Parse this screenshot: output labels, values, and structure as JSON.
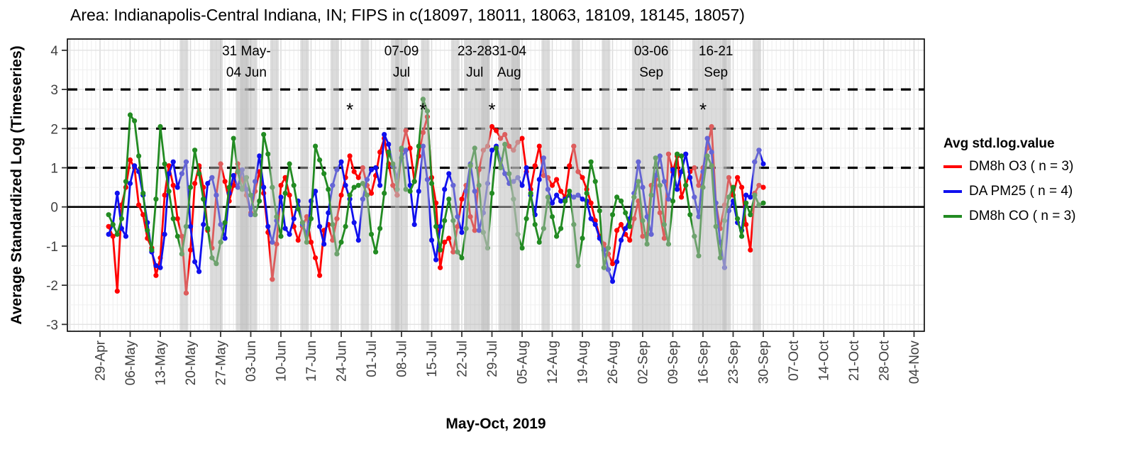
{
  "title": "Area: Indianapolis-Central Indiana, IN; FIPS in c(18097, 18011, 18063, 18109, 18145, 18057)",
  "legend": {
    "title": "Avg std.log.value",
    "entries": [
      {
        "label": "DM8h O3 ( n = 3)",
        "color": "#ff0000"
      },
      {
        "label": "DA PM25 ( n = 4)",
        "color": "#1010ee"
      },
      {
        "label": "DM8h CO ( n = 3)",
        "color": "#228b22"
      }
    ]
  },
  "chart_data": {
    "type": "line",
    "title": "Area: Indianapolis-Central Indiana, IN; FIPS in c(18097, 18011, 18063, 18109, 18145, 18057)",
    "x_axis": {
      "label": "May-Oct, 2019",
      "tick_start_date": "2019-04-29",
      "tick_interval_days": 7,
      "tick_labels": [
        "29-Apr",
        "06-May",
        "13-May",
        "20-May",
        "27-May",
        "03-Jun",
        "10-Jun",
        "17-Jun",
        "24-Jun",
        "01-Jul",
        "08-Jul",
        "15-Jul",
        "22-Jul",
        "29-Jul",
        "05-Aug",
        "12-Aug",
        "19-Aug",
        "26-Aug",
        "02-Sep",
        "09-Sep",
        "16-Sep",
        "23-Sep",
        "30-Sep",
        "07-Oct",
        "14-Oct",
        "21-Oct",
        "28-Oct",
        "04-Nov"
      ]
    },
    "y_axis": {
      "label": "Average Standardized Log (Timeseries)",
      "ticks": [
        -3,
        -2,
        -1,
        0,
        1,
        2,
        3,
        4
      ],
      "range": [
        -3.3,
        4.3
      ],
      "minor_step": 0.5
    },
    "reference_lines": {
      "solid": [
        0
      ],
      "dashed": [
        1,
        2,
        3
      ]
    },
    "data_start_date": "2019-05-01",
    "series": [
      {
        "name": "DM8h O3 ( n = 3)",
        "color": "#ff0000",
        "values": [
          -0.5,
          -0.75,
          -2.15,
          0.05,
          0.5,
          1.2,
          1.0,
          0.05,
          -0.2,
          -0.8,
          -1.05,
          -1.75,
          -1.3,
          0.3,
          1.05,
          0.55,
          -0.3,
          -0.75,
          -2.2,
          -1.1,
          0.6,
          1.05,
          0.5,
          -0.6,
          -1.05,
          0.3,
          1.1,
          0.65,
          0.15,
          0.55,
          1.1,
          0.7,
          0.3,
          -0.15,
          0.4,
          0.9,
          0.35,
          -0.65,
          -1.85,
          -0.95,
          0.55,
          0.75,
          0.3,
          -0.5,
          -0.85,
          -0.5,
          -0.25,
          -0.9,
          -1.3,
          -1.75,
          -0.6,
          -0.45,
          -0.85,
          -0.3,
          0.3,
          0.75,
          1.3,
          0.9,
          0.75,
          1.0,
          0.55,
          0.35,
          0.8,
          1.4,
          1.75,
          1.1,
          0.55,
          0.3,
          1.45,
          1.95,
          1.5,
          0.65,
          1.3,
          1.9,
          2.3,
          0.75,
          0.1,
          -1.55,
          -0.9,
          -0.8,
          -1.15,
          -0.5,
          0.2,
          0.55,
          -0.25,
          -0.6,
          0.95,
          1.45,
          1.55,
          2.05,
          1.95,
          1.75,
          1.85,
          1.55,
          1.45,
          1.65,
          1.75,
          0.9,
          0.45,
          1.05,
          1.55,
          0.8,
          0.75,
          0.55,
          0.7,
          0.4,
          0.25,
          1.05,
          1.55,
          0.9,
          0.75,
          0.45,
          0.1,
          -0.35,
          -0.75,
          -0.95,
          -1.2,
          -1.45,
          -0.6,
          -0.45,
          -0.7,
          -0.85,
          -0.3,
          0.15,
          -0.75,
          -0.7,
          0.55,
          0.7,
          -0.15,
          -0.8,
          1.35,
          0.9,
          1.3,
          0.25,
          0.55,
          0.9,
          1.0,
          0.55,
          1.0,
          1.5,
          2.05,
          0.1,
          -0.55,
          0.05,
          0.75,
          0.3,
          0.75,
          0.5,
          -0.45,
          -1.1,
          0.35,
          0.55,
          0.5
        ]
      },
      {
        "name": "DA PM25 ( n = 4)",
        "color": "#1010ee",
        "values": [
          -0.7,
          -0.45,
          0.35,
          -0.55,
          -0.75,
          0.6,
          1.05,
          0.9,
          0.3,
          -0.4,
          -1.15,
          -1.5,
          -1.55,
          -0.7,
          0.85,
          1.15,
          0.5,
          0.85,
          1.15,
          -0.5,
          -1.4,
          -1.65,
          -0.45,
          0.6,
          0.75,
          0.3,
          -0.45,
          -0.8,
          0.35,
          0.8,
          0.5,
          0.95,
          0.45,
          -0.2,
          0.65,
          1.3,
          0.5,
          -0.5,
          -0.9,
          -0.35,
          0.25,
          -0.55,
          -0.7,
          -0.3,
          0.15,
          -0.45,
          -0.7,
          0.15,
          0.4,
          -0.5,
          -0.95,
          -0.15,
          0.55,
          0.95,
          1.15,
          0.55,
          0.2,
          -0.4,
          -0.85,
          0.2,
          0.7,
          0.95,
          1.0,
          0.55,
          1.85,
          1.6,
          1.05,
          0.75,
          1.25,
          1.45,
          0.55,
          -0.45,
          0.4,
          1.55,
          0.7,
          -0.85,
          -1.35,
          -0.5,
          0.45,
          0.85,
          0.55,
          -0.25,
          -0.65,
          0.4,
          1.1,
          0.4,
          -0.6,
          -0.15,
          0.6,
          1.45,
          1.55,
          1.2,
          0.85,
          0.6,
          0.65,
          0.75,
          0.55,
          1.0,
          0.3,
          -0.2,
          0.7,
          1.25,
          0.45,
          0.1,
          0.3,
          0.15,
          0.2,
          0.3,
          0.25,
          0.3,
          0.2,
          0.15,
          -0.3,
          -0.45,
          -0.8,
          -1.1,
          -1.6,
          -1.9,
          -1.4,
          -0.85,
          -0.55,
          -0.3,
          0.35,
          1.15,
          0.5,
          -0.25,
          -0.7,
          0.8,
          1.3,
          0.65,
          0.2,
          0.95,
          0.45,
          0.9,
          1.35,
          0.75,
          0.25,
          -0.25,
          0.9,
          1.75,
          1.4,
          0.1,
          -0.9,
          -1.55,
          -0.1,
          0.15,
          -0.4,
          -0.6,
          0.3,
          0.25,
          1.15,
          1.45,
          1.1
        ]
      },
      {
        "name": "DM8h CO ( n = 3)",
        "color": "#228b22",
        "values": [
          -0.2,
          -0.45,
          -0.7,
          -0.3,
          0.65,
          2.35,
          2.2,
          1.3,
          0.35,
          -0.6,
          -1.1,
          0.2,
          2.05,
          1.1,
          0.4,
          -0.3,
          -0.75,
          -1.2,
          -0.5,
          0.5,
          1.45,
          0.85,
          0.2,
          -0.55,
          -1.3,
          -1.45,
          -0.9,
          -0.4,
          0.5,
          1.75,
          0.9,
          0.45,
          0.75,
          0.3,
          -0.2,
          0.15,
          1.85,
          1.35,
          0.5,
          -0.25,
          -0.75,
          0.35,
          1.1,
          0.55,
          -0.05,
          -0.4,
          -0.9,
          -0.3,
          1.55,
          1.2,
          0.85,
          0.45,
          -0.45,
          -1.2,
          -0.9,
          -0.5,
          0.3,
          0.5,
          0.55,
          0.6,
          0.3,
          -0.7,
          -1.15,
          -0.55,
          0.35,
          1.4,
          1.1,
          0.45,
          1.5,
          0.45,
          0.4,
          0.65,
          1.55,
          2.75,
          2.45,
          0.6,
          -0.5,
          -1.1,
          -0.35,
          0.2,
          -0.35,
          -1.15,
          -1.3,
          -0.55,
          1.05,
          1.5,
          0.55,
          -0.65,
          -1.05,
          0.35,
          1.5,
          1.0,
          1.6,
          0.85,
          0.2,
          -0.7,
          -1.05,
          -0.3,
          0.35,
          -0.45,
          -0.9,
          -0.55,
          0.25,
          -0.25,
          -0.75,
          -0.55,
          0.15,
          0.4,
          -0.45,
          -1.5,
          -0.8,
          0.35,
          1.15,
          0.65,
          -0.1,
          -1.55,
          -1.05,
          -0.2,
          0.25,
          0.15,
          -0.15,
          -0.5,
          0.25,
          0.65,
          -0.35,
          -0.95,
          0.3,
          1.25,
          0.55,
          -0.45,
          -0.95,
          0.15,
          1.35,
          1.3,
          0.55,
          -0.2,
          -0.75,
          -1.25,
          0.5,
          1.3,
          1.05,
          -0.5,
          -1.3,
          -0.35,
          0.25,
          0.5,
          -0.3,
          -0.75,
          0.1,
          -0.2,
          0.3,
          0.05,
          0.1
        ]
      }
    ],
    "shaded_bands": [
      {
        "start": "2019-05-18",
        "end": "2019-05-19",
        "kind": "weekend"
      },
      {
        "start": "2019-05-25",
        "end": "2019-05-27",
        "kind": "weekend"
      },
      {
        "start": "2019-05-31",
        "end": "2019-06-04",
        "kind": "episode",
        "label": "31 May-04 Jun"
      },
      {
        "start": "2019-06-01",
        "end": "2019-06-02",
        "kind": "weekend"
      },
      {
        "start": "2019-06-08",
        "end": "2019-06-09",
        "kind": "weekend"
      },
      {
        "start": "2019-06-15",
        "end": "2019-06-16",
        "kind": "weekend"
      },
      {
        "start": "2019-06-22",
        "end": "2019-06-23",
        "kind": "weekend"
      },
      {
        "start": "2019-06-29",
        "end": "2019-06-30",
        "kind": "weekend"
      },
      {
        "start": "2019-07-06",
        "end": "2019-07-07",
        "kind": "weekend"
      },
      {
        "start": "2019-07-07",
        "end": "2019-07-09",
        "kind": "episode",
        "label": "07-09 Jul"
      },
      {
        "start": "2019-07-13",
        "end": "2019-07-14",
        "kind": "weekend"
      },
      {
        "start": "2019-07-20",
        "end": "2019-07-21",
        "kind": "weekend"
      },
      {
        "start": "2019-07-23",
        "end": "2019-07-28",
        "kind": "episode",
        "label": "23-28 Jul"
      },
      {
        "start": "2019-07-27",
        "end": "2019-07-28",
        "kind": "weekend"
      },
      {
        "start": "2019-07-31",
        "end": "2019-08-04",
        "kind": "episode",
        "label": "31-04 Aug"
      },
      {
        "start": "2019-08-03",
        "end": "2019-08-04",
        "kind": "weekend"
      },
      {
        "start": "2019-08-10",
        "end": "2019-08-11",
        "kind": "weekend"
      },
      {
        "start": "2019-08-17",
        "end": "2019-08-18",
        "kind": "weekend"
      },
      {
        "start": "2019-08-24",
        "end": "2019-08-25",
        "kind": "weekend"
      },
      {
        "start": "2019-08-31",
        "end": "2019-09-02",
        "kind": "weekend"
      },
      {
        "start": "2019-09-03",
        "end": "2019-09-06",
        "kind": "episode",
        "label": "03-06 Sep"
      },
      {
        "start": "2019-09-07",
        "end": "2019-09-08",
        "kind": "weekend"
      },
      {
        "start": "2019-09-14",
        "end": "2019-09-15",
        "kind": "weekend"
      },
      {
        "start": "2019-09-16",
        "end": "2019-09-21",
        "kind": "episode",
        "label": "16-21 Sep"
      },
      {
        "start": "2019-09-21",
        "end": "2019-09-22",
        "kind": "weekend"
      },
      {
        "start": "2019-09-28",
        "end": "2019-09-29",
        "kind": "weekend"
      }
    ],
    "annotations": [
      {
        "line1": "31 May-",
        "line2": "04 Jun",
        "center_date": "2019-06-02"
      },
      {
        "line1": "07-09",
        "line2": "Jul",
        "center_date": "2019-07-08"
      },
      {
        "line1": "23-28",
        "line2": "Jul",
        "center_date": "2019-07-25"
      },
      {
        "line1": "31-04",
        "line2": "Aug",
        "center_date": "2019-08-02"
      },
      {
        "line1": "03-06",
        "line2": "Sep",
        "center_date": "2019-09-04"
      },
      {
        "line1": "16-21",
        "line2": "Sep",
        "center_date": "2019-09-19"
      }
    ],
    "asterisks": [
      {
        "date": "2019-06-26",
        "value": 2.5
      },
      {
        "date": "2019-07-13",
        "value": 2.5
      },
      {
        "date": "2019-07-29",
        "value": 2.5
      },
      {
        "date": "2019-09-16",
        "value": 2.5
      }
    ]
  }
}
